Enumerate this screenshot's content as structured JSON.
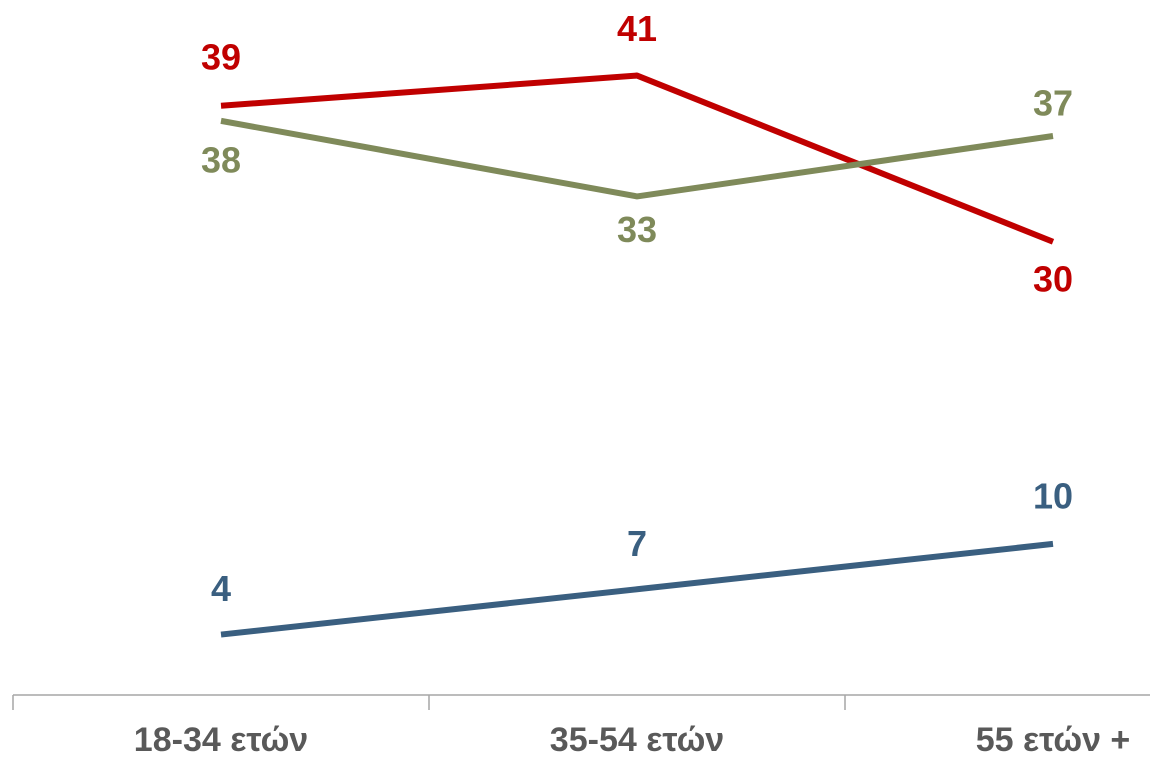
{
  "chart_data": {
    "type": "line",
    "categories": [
      "18-34 ετών",
      "35-54 ετών",
      "55 ετών +"
    ],
    "series": [
      {
        "color": "#c00000",
        "values": [
          39,
          41,
          30
        ]
      },
      {
        "color": "#7f8a5a",
        "values": [
          38,
          33,
          37
        ]
      },
      {
        "color": "#3a5f80",
        "values": [
          4,
          7,
          10
        ]
      }
    ],
    "ylim": [
      0,
      46
    ]
  }
}
